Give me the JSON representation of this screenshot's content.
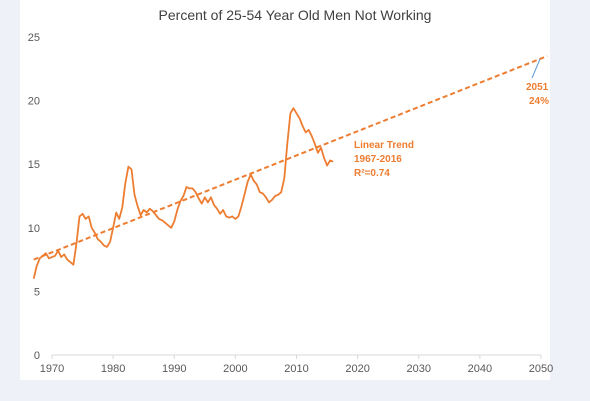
{
  "chart_data": {
    "type": "line",
    "title": "Percent of 25-54 Year Old Men Not Working",
    "xlabel": "",
    "ylabel": "",
    "xlim": [
      1970,
      2050
    ],
    "ylim": [
      0,
      25
    ],
    "x_ticks": [
      "1970",
      "1980",
      "1990",
      "2000",
      "2010",
      "2020",
      "2030",
      "2040",
      "2050"
    ],
    "y_ticks": [
      "0",
      "5",
      "10",
      "15",
      "20",
      "25"
    ],
    "grid": false,
    "legend": "none",
    "colors": {
      "series": "#ed7d31",
      "axis": "#d9d9d9",
      "text": "#595959"
    },
    "series": [
      {
        "style": "solid",
        "x": [
          1967.0,
          1967.5,
          1968.0,
          1968.5,
          1969.0,
          1969.5,
          1970.0,
          1970.5,
          1971.0,
          1971.5,
          1972.0,
          1972.5,
          1973.0,
          1973.5,
          1974.0,
          1974.5,
          1975.0,
          1975.5,
          1976.0,
          1976.5,
          1977.0,
          1977.5,
          1978.0,
          1978.5,
          1979.0,
          1979.5,
          1980.0,
          1980.5,
          1981.0,
          1981.5,
          1982.0,
          1982.5,
          1983.0,
          1983.5,
          1984.0,
          1984.5,
          1985.0,
          1985.5,
          1986.0,
          1986.5,
          1987.0,
          1987.5,
          1988.0,
          1988.5,
          1989.0,
          1989.5,
          1990.0,
          1990.5,
          1991.0,
          1991.5,
          1992.0,
          1992.5,
          1993.0,
          1993.5,
          1994.0,
          1994.5,
          1995.0,
          1995.5,
          1996.0,
          1996.5,
          1997.0,
          1997.5,
          1998.0,
          1998.5,
          1999.0,
          1999.5,
          2000.0,
          2000.5,
          2001.0,
          2001.5,
          2002.0,
          2002.5,
          2003.0,
          2003.5,
          2004.0,
          2004.5,
          2005.0,
          2005.5,
          2006.0,
          2006.5,
          2007.0,
          2007.5,
          2008.0,
          2008.5,
          2009.0,
          2009.5,
          2010.0,
          2010.5,
          2011.0,
          2011.5,
          2012.0,
          2012.5,
          2013.0,
          2013.5,
          2014.0,
          2014.5,
          2015.0,
          2015.5,
          2016.0
        ],
        "values": [
          6.0,
          7.0,
          7.6,
          7.8,
          8.0,
          7.6,
          7.7,
          7.8,
          8.2,
          7.7,
          7.9,
          7.5,
          7.3,
          7.1,
          8.8,
          10.9,
          11.1,
          10.7,
          10.9,
          10.0,
          9.6,
          9.1,
          8.9,
          8.6,
          8.5,
          8.9,
          10.0,
          11.2,
          10.7,
          11.6,
          13.5,
          14.8,
          14.6,
          12.6,
          11.7,
          11.0,
          11.4,
          11.2,
          11.5,
          11.3,
          11.0,
          10.7,
          10.6,
          10.4,
          10.2,
          10.0,
          10.5,
          11.4,
          12.1,
          12.5,
          13.2,
          13.1,
          13.1,
          12.8,
          12.3,
          11.9,
          12.4,
          12.0,
          12.4,
          11.8,
          11.5,
          11.1,
          11.4,
          10.9,
          10.8,
          10.9,
          10.7,
          10.9,
          11.7,
          12.6,
          13.6,
          14.2,
          13.7,
          13.4,
          12.8,
          12.7,
          12.4,
          12.0,
          12.2,
          12.5,
          12.6,
          12.8,
          13.9,
          16.6,
          19.0,
          19.4,
          19.0,
          18.6,
          18.0,
          17.5,
          17.7,
          17.2,
          16.6,
          15.9,
          16.3,
          15.5,
          14.9,
          15.3,
          15.2
        ]
      },
      {
        "style": "dashed",
        "x": [
          1967,
          2051
        ],
        "values": [
          7.5,
          23.5
        ]
      }
    ],
    "annotations": [
      {
        "lines": [
          "Linear Trend",
          "1967-2016",
          "R²=0.74"
        ]
      },
      {
        "lines": [
          "2051",
          "24%"
        ]
      }
    ]
  }
}
